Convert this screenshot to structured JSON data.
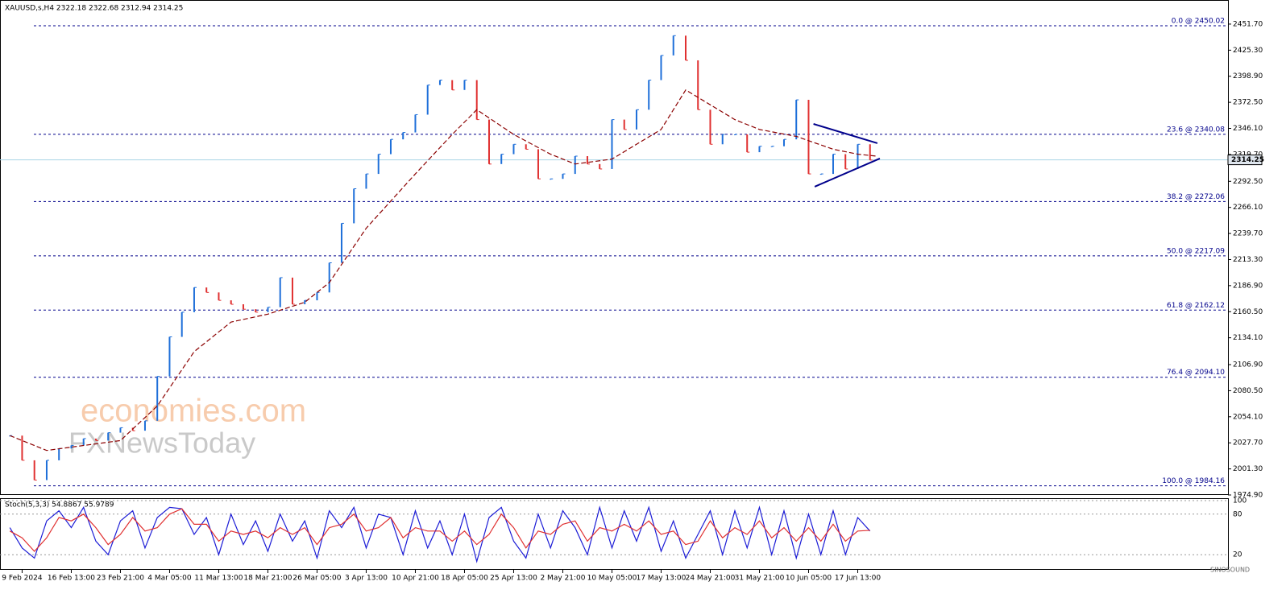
{
  "chart_data": [
    {
      "type": "line",
      "title": "XAUUSD,s,H4  2322.18 2322.68 2312.94 2314.25",
      "x": [
        -1,
        0,
        1,
        2,
        3,
        4,
        5,
        6,
        7,
        8,
        9,
        10,
        11,
        12,
        13,
        14,
        15,
        16,
        17,
        18,
        19,
        20,
        21,
        22,
        23,
        24,
        25,
        26,
        27,
        28,
        29,
        30,
        31,
        32,
        33,
        34,
        35,
        36,
        37,
        38,
        39,
        40,
        41,
        42,
        43,
        44,
        45,
        46,
        47,
        48,
        49,
        50,
        51,
        52,
        53,
        54,
        55,
        56,
        57,
        58,
        59,
        60,
        61,
        62,
        63,
        64,
        65,
        66,
        67,
        68,
        69
      ],
      "values": [
        2035,
        2010,
        1990,
        2010,
        2022,
        2025,
        2032,
        2030,
        2038,
        2043,
        2040,
        2050,
        2095,
        2135,
        2160,
        2185,
        2180,
        2172,
        2168,
        2163,
        2160,
        2165,
        2195,
        2168,
        2172,
        2180,
        2210,
        2250,
        2285,
        2300,
        2320,
        2335,
        2342,
        2360,
        2390,
        2395,
        2385,
        2395,
        2355,
        2310,
        2320,
        2330,
        2325,
        2295,
        2295,
        2300,
        2318,
        2310,
        2305,
        2355,
        2345,
        2365,
        2395,
        2420,
        2440,
        2415,
        2365,
        2330,
        2340,
        2340,
        2322,
        2328,
        2328,
        2335,
        2375,
        2300,
        2300,
        2320,
        2305,
        2330,
        2314
      ],
      "up_color": "#1e6fd9",
      "down_color": "#e03030",
      "ma": {
        "color": "#8b0000",
        "x": [
          -1,
          2,
          8,
          11,
          14,
          17,
          20,
          23,
          25,
          28,
          32,
          35,
          37,
          40,
          43,
          45,
          48,
          50,
          52,
          54,
          56,
          58,
          60,
          63,
          66,
          68,
          69.5
        ],
        "values": [
          2035,
          2020,
          2030,
          2065,
          2120,
          2150,
          2158,
          2170,
          2190,
          2245,
          2300,
          2340,
          2365,
          2340,
          2320,
          2310,
          2315,
          2330,
          2345,
          2385,
          2370,
          2355,
          2345,
          2338,
          2325,
          2320,
          2318
        ]
      },
      "trendlines": [
        {
          "color": "#00008b",
          "x": [
            64.4,
            69.6
          ],
          "values": [
            2350.6,
            2331.1
          ]
        },
        {
          "color": "#00008b",
          "x": [
            64.5,
            69.8
          ],
          "values": [
            2287.1,
            2315.6
          ]
        }
      ],
      "fib_levels": [
        {
          "value": 2450.02,
          "label": "0.0 @ 2450.02"
        },
        {
          "value": 2340.08,
          "label": "23.6 @ 2340.08"
        },
        {
          "value": 2272.06,
          "label": "38.2 @ 2272.06"
        },
        {
          "value": 2217.09,
          "label": "50.0 @ 2217.09"
        },
        {
          "value": 2162.12,
          "label": "61.8 @ 2162.12"
        },
        {
          "value": 2094.1,
          "label": "76.4 @ 2094.10"
        },
        {
          "value": 1984.16,
          "label": "100.0 @ 1984.16"
        }
      ],
      "fib_color": "#00008b",
      "last_price": 2314.25,
      "xlim": [
        -1.8,
        98
      ],
      "ylim": [
        1974.9,
        2476.1
      ],
      "yticks": [
        {
          "value": 2451.7,
          "label": "2451.70"
        },
        {
          "value": 2425.3,
          "label": "2425.30"
        },
        {
          "value": 2398.9,
          "label": "2398.90"
        },
        {
          "value": 2372.5,
          "label": "2372.50"
        },
        {
          "value": 2346.1,
          "label": "2346.10"
        },
        {
          "value": 2319.7,
          "label": "2319.70"
        },
        {
          "value": 2292.5,
          "label": "2292.50"
        },
        {
          "value": 2266.1,
          "label": "2266.10"
        },
        {
          "value": 2239.7,
          "label": "2239.70"
        },
        {
          "value": 2213.3,
          "label": "2213.30"
        },
        {
          "value": 2186.9,
          "label": "2186.90"
        },
        {
          "value": 2160.5,
          "label": "2160.50"
        },
        {
          "value": 2134.1,
          "label": "2134.10"
        },
        {
          "value": 2106.9,
          "label": "2106.90"
        },
        {
          "value": 2080.5,
          "label": "2080.50"
        },
        {
          "value": 2054.1,
          "label": "2054.10"
        },
        {
          "value": 2027.7,
          "label": "2027.70"
        },
        {
          "value": 2001.3,
          "label": "2001.30"
        },
        {
          "value": 1974.9,
          "label": "1974.90"
        }
      ],
      "xticks": [
        {
          "value": 0,
          "label": "9 Feb 2024"
        },
        {
          "value": 4,
          "label": "16 Feb 13:00"
        },
        {
          "value": 8,
          "label": "23 Feb 21:00"
        },
        {
          "value": 12,
          "label": "4 Mar 05:00"
        },
        {
          "value": 16,
          "label": "11 Mar 13:00"
        },
        {
          "value": 20,
          "label": "18 Mar 21:00"
        },
        {
          "value": 24,
          "label": "26 Mar 05:00"
        },
        {
          "value": 28,
          "label": "3 Apr 13:00"
        },
        {
          "value": 32,
          "label": "10 Apr 21:00"
        },
        {
          "value": 36,
          "label": "18 Apr 05:00"
        },
        {
          "value": 40,
          "label": "25 Apr 13:00"
        },
        {
          "value": 44,
          "label": "2 May 21:00"
        },
        {
          "value": 48,
          "label": "10 May 05:00"
        },
        {
          "value": 52,
          "label": "17 May 13:00"
        },
        {
          "value": 56,
          "label": "24 May 21:00"
        },
        {
          "value": 60,
          "label": "31 May 21:00"
        },
        {
          "value": 64,
          "label": "10 Jun 05:00"
        },
        {
          "value": 68,
          "label": "17 Jun 13:00"
        }
      ],
      "watermarks": [
        "economies.com",
        "FXNewsToday"
      ],
      "logo": "SINOSOUND"
    },
    {
      "type": "line",
      "title": "Stoch(5,3,3) 54.8867 55.9789",
      "series": [
        {
          "color": "#1c1cd6",
          "values": [
            60,
            30,
            15,
            70,
            85,
            60,
            90,
            40,
            20,
            70,
            85,
            30,
            75,
            90,
            88,
            50,
            75,
            20,
            80,
            35,
            70,
            25,
            80,
            40,
            70,
            15,
            85,
            60,
            90,
            30,
            80,
            75,
            20,
            85,
            30,
            70,
            20,
            80,
            10,
            75,
            90,
            40,
            15,
            80,
            30,
            85,
            60,
            20,
            90,
            30,
            85,
            40,
            90,
            25,
            70,
            15,
            50,
            85,
            20,
            85,
            30,
            90,
            20,
            85,
            15,
            80,
            20,
            85,
            20,
            75,
            55
          ]
        },
        {
          "color": "#e03030",
          "values": [
            55,
            45,
            25,
            45,
            75,
            70,
            80,
            60,
            35,
            50,
            75,
            55,
            60,
            80,
            88,
            65,
            65,
            40,
            55,
            50,
            55,
            45,
            60,
            50,
            60,
            35,
            60,
            65,
            80,
            55,
            60,
            75,
            45,
            60,
            55,
            55,
            40,
            55,
            35,
            50,
            80,
            60,
            30,
            55,
            50,
            65,
            70,
            40,
            60,
            55,
            65,
            55,
            70,
            50,
            55,
            35,
            40,
            70,
            45,
            60,
            50,
            70,
            45,
            60,
            40,
            60,
            40,
            65,
            40,
            55,
            56
          ]
        }
      ],
      "ylim": [
        0,
        100
      ],
      "yticks": [
        100,
        80,
        20
      ]
    }
  ]
}
